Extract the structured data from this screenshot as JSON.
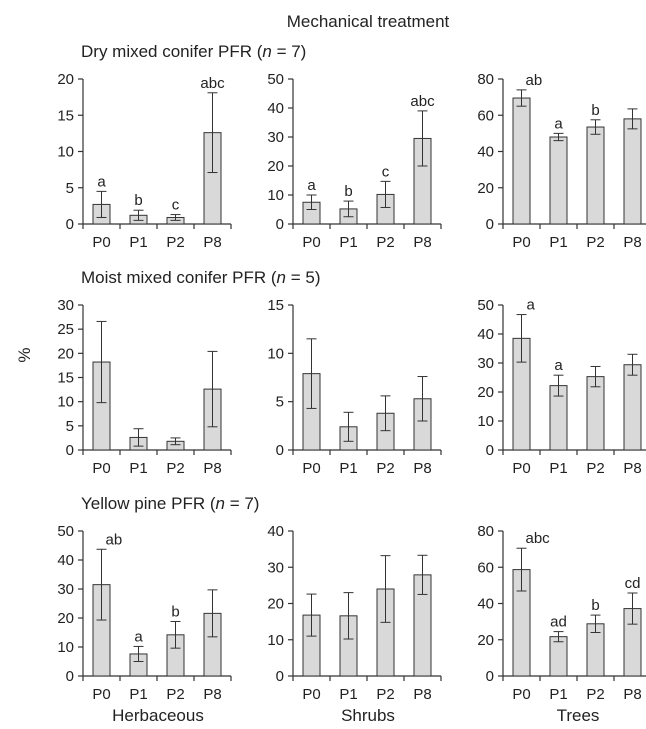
{
  "title": "Mechanical treatment",
  "ylabel": "%",
  "column_labels": [
    "Herbaceous",
    "Shrubs",
    "Trees"
  ],
  "colors": {
    "bar_fill": "#d9d9d9",
    "bar_stroke": "#333333",
    "axis": "#333333",
    "text": "#222222"
  },
  "rows": [
    {
      "title_prefix": "Dry mixed conifer PFR (",
      "n_symbol": "n",
      "n_suffix": " = 7)"
    },
    {
      "title_prefix": "Moist mixed conifer PFR (",
      "n_symbol": "n",
      "n_suffix": " = 5)"
    },
    {
      "title_prefix": "Yellow pine PFR (",
      "n_symbol": "n",
      "n_suffix": " = 7)"
    }
  ],
  "chart_data": [
    {
      "type": "bar",
      "row": 0,
      "col": 0,
      "group": "Herbaceous",
      "categories": [
        "P0",
        "P1",
        "P2",
        "P8"
      ],
      "values": [
        2.7,
        1.2,
        0.9,
        12.6
      ],
      "error": [
        1.8,
        0.7,
        0.4,
        5.5
      ],
      "labels": [
        "a",
        "b",
        "c",
        "abc"
      ],
      "ylim": [
        0,
        20
      ],
      "yticks": [
        0,
        5,
        10,
        15,
        20
      ]
    },
    {
      "type": "bar",
      "row": 0,
      "col": 1,
      "group": "Shrubs",
      "categories": [
        "P0",
        "P1",
        "P2",
        "P8"
      ],
      "values": [
        7.5,
        5.2,
        10.2,
        29.5
      ],
      "error": [
        2.5,
        2.7,
        4.5,
        9.5
      ],
      "labels": [
        "a",
        "b",
        "c",
        "abc"
      ],
      "ylim": [
        0,
        50
      ],
      "yticks": [
        0,
        10,
        20,
        30,
        40,
        50
      ]
    },
    {
      "type": "bar",
      "row": 0,
      "col": 2,
      "group": "Trees",
      "categories": [
        "P0",
        "P1",
        "P2",
        "P8"
      ],
      "values": [
        69.5,
        48,
        53.5,
        58
      ],
      "error": [
        4.5,
        2,
        4,
        5.5
      ],
      "labels": [
        "ab",
        "a",
        "b",
        ""
      ],
      "ylim": [
        0,
        80
      ],
      "yticks": [
        0,
        20,
        40,
        60,
        80
      ]
    },
    {
      "type": "bar",
      "row": 1,
      "col": 0,
      "group": "Herbaceous",
      "categories": [
        "P0",
        "P1",
        "P2",
        "P8"
      ],
      "values": [
        18.2,
        2.6,
        1.8,
        12.6
      ],
      "error": [
        8.4,
        1.8,
        0.7,
        7.8
      ],
      "labels": [
        "",
        "",
        "",
        ""
      ],
      "ylim": [
        0,
        30
      ],
      "yticks": [
        0,
        5,
        10,
        15,
        20,
        25,
        30
      ]
    },
    {
      "type": "bar",
      "row": 1,
      "col": 1,
      "group": "Shrubs",
      "categories": [
        "P0",
        "P1",
        "P2",
        "P8"
      ],
      "values": [
        7.9,
        2.4,
        3.8,
        5.3
      ],
      "error": [
        3.6,
        1.5,
        1.8,
        2.3
      ],
      "labels": [
        "",
        "",
        "",
        ""
      ],
      "ylim": [
        0,
        15
      ],
      "yticks": [
        0,
        5,
        10,
        15
      ]
    },
    {
      "type": "bar",
      "row": 1,
      "col": 2,
      "group": "Trees",
      "categories": [
        "P0",
        "P1",
        "P2",
        "P8"
      ],
      "values": [
        38.5,
        22.2,
        25.3,
        29.4
      ],
      "error": [
        8.2,
        3.6,
        3.5,
        3.6
      ],
      "labels": [
        "a",
        "a",
        "",
        ""
      ],
      "ylim": [
        0,
        50
      ],
      "yticks": [
        0,
        10,
        20,
        30,
        40,
        50
      ]
    },
    {
      "type": "bar",
      "row": 2,
      "col": 0,
      "group": "Herbaceous",
      "categories": [
        "P0",
        "P1",
        "P2",
        "P8"
      ],
      "values": [
        31.5,
        7.6,
        14.2,
        21.6
      ],
      "error": [
        12.2,
        2.6,
        4.6,
        8.1
      ],
      "labels": [
        "ab",
        "a",
        "b",
        ""
      ],
      "ylim": [
        0,
        50
      ],
      "yticks": [
        0,
        10,
        20,
        30,
        40,
        50
      ]
    },
    {
      "type": "bar",
      "row": 2,
      "col": 1,
      "group": "Shrubs",
      "categories": [
        "P0",
        "P1",
        "P2",
        "P8"
      ],
      "values": [
        16.8,
        16.6,
        24,
        27.9
      ],
      "error": [
        5.8,
        6.4,
        9.2,
        5.4
      ],
      "labels": [
        "",
        "",
        "",
        ""
      ],
      "ylim": [
        0,
        40
      ],
      "yticks": [
        0,
        10,
        20,
        30,
        40
      ]
    },
    {
      "type": "bar",
      "row": 2,
      "col": 2,
      "group": "Trees",
      "categories": [
        "P0",
        "P1",
        "P2",
        "P8"
      ],
      "values": [
        58.7,
        21.7,
        28.8,
        37.2
      ],
      "error": [
        11.8,
        2.8,
        4.8,
        8.6
      ],
      "labels": [
        "abc",
        "ad",
        "b",
        "cd"
      ],
      "ylim": [
        0,
        80
      ],
      "yticks": [
        0,
        20,
        40,
        60,
        80
      ]
    }
  ]
}
